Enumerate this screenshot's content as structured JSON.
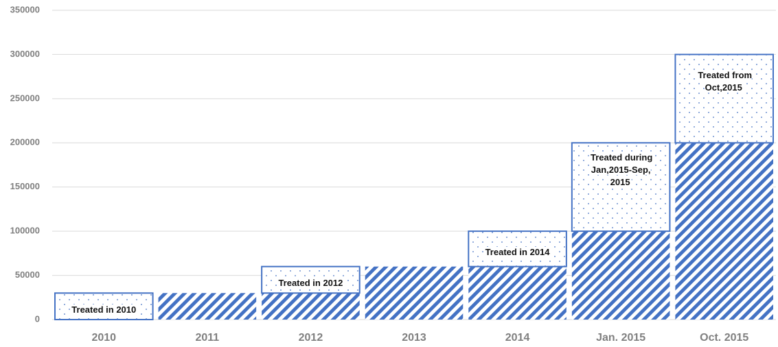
{
  "chart_data": {
    "type": "stacked-bar",
    "categories": [
      "2010",
      "2011",
      "2012",
      "2013",
      "2014",
      "Jan. 2015",
      "Oct. 2015"
    ],
    "series": [
      {
        "color": "#4472c4",
        "pattern": "hatch",
        "values": [
          0,
          30000,
          30000,
          60000,
          60000,
          100000,
          200000
        ]
      },
      {
        "color": "#4472c4",
        "pattern": "dots",
        "values": [
          30000,
          0,
          30000,
          0,
          40000,
          100000,
          100000
        ]
      }
    ],
    "annotations": [
      "Treated in 2010",
      "Treated in 2012",
      "Treated in 2014",
      "Treated during Jan,2015-Sep, 2015",
      "Treated from Oct,2015"
    ],
    "ylim": [
      0,
      350000
    ],
    "yticks": [
      0,
      50000,
      100000,
      150000,
      200000,
      250000,
      300000,
      350000
    ],
    "grid": true
  }
}
